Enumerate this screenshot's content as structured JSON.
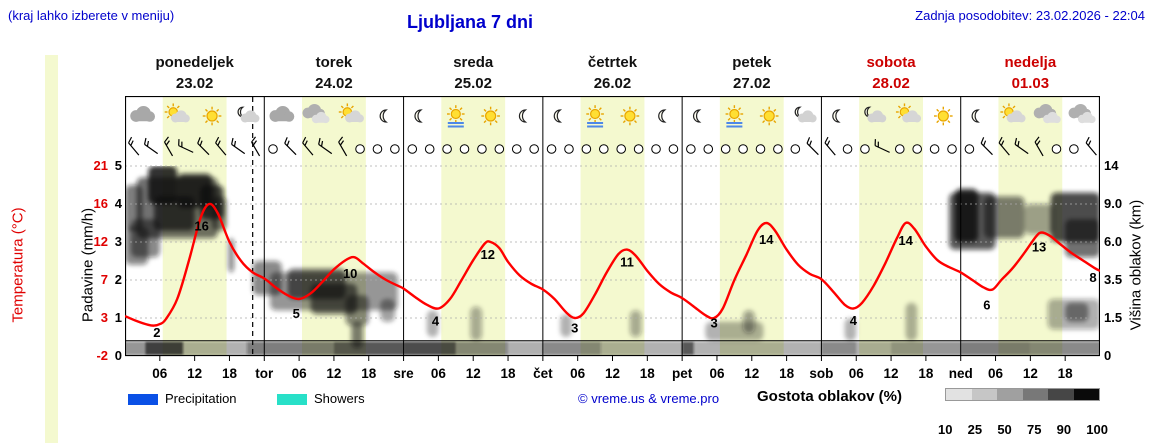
{
  "header": {
    "hint": "(kraj lahko izberete v meniju)",
    "title": "Ljubljana 7 dni",
    "updated": "Zadnja posodobitev: 23.02.2026 - 22:04"
  },
  "days": [
    {
      "name": "ponedeljek",
      "date": "23.02",
      "color": "#111111"
    },
    {
      "name": "torek",
      "date": "24.02",
      "color": "#111111"
    },
    {
      "name": "sreda",
      "date": "25.02",
      "color": "#111111"
    },
    {
      "name": "četrtek",
      "date": "26.02",
      "color": "#111111"
    },
    {
      "name": "petek",
      "date": "27.02",
      "color": "#111111"
    },
    {
      "name": "sobota",
      "date": "28.02",
      "color": "#cc0000"
    },
    {
      "name": "nedelja",
      "date": "01.03",
      "color": "#cc0000"
    }
  ],
  "axes": {
    "temp": {
      "title": "Temperatura (°C)",
      "ticks": [
        "21",
        "16",
        "12",
        "7",
        "3",
        "-2"
      ],
      "color": "#e00000"
    },
    "precip": {
      "title": "Padavine (mm/h)",
      "ticks": [
        "5",
        "4",
        "3",
        "2",
        "1",
        "0"
      ]
    },
    "cloud_height": {
      "title": "Višina oblakov (km)",
      "ticks": [
        "14",
        "9.0",
        "6.0",
        "3.5",
        "1.5",
        "0"
      ]
    },
    "x_ticks": [
      "06",
      "12",
      "18",
      "tor",
      "06",
      "12",
      "18",
      "sre",
      "06",
      "12",
      "18",
      "čet",
      "06",
      "12",
      "18",
      "pet",
      "06",
      "12",
      "18",
      "sob",
      "06",
      "12",
      "18",
      "ned",
      "06",
      "12",
      "18"
    ]
  },
  "legend": {
    "precipitation": {
      "label": "Precipitation",
      "color": "#0a50e6"
    },
    "showers": {
      "label": "Showers",
      "color": "#28e0c8"
    },
    "credit": "© vreme.us & vreme.pro",
    "cloud_density": {
      "label": "Gostota oblakov (%)",
      "ticks": [
        "10",
        "25",
        "50",
        "75",
        "90",
        "100"
      ],
      "shades": [
        "#e2e2e2",
        "#c6c6c6",
        "#a0a0a0",
        "#787878",
        "#464646",
        "#0a0a0a"
      ]
    }
  },
  "colors": {
    "band": "#f4f9cf",
    "curve": "#ff0000",
    "grid": "#aaaaaa",
    "frame": "#000000"
  },
  "chart_data": {
    "type": "line",
    "title": "Ljubljana 7 dni meteogram",
    "x_unit": "hours from Mon 23.02 00:00",
    "x_range": [
      0,
      168
    ],
    "units_range": [
      0,
      5
    ],
    "temp_axis_map": {
      "units": [
        0,
        1,
        2,
        3,
        4,
        5
      ],
      "temps": [
        -2,
        3,
        7,
        12,
        16,
        21
      ]
    },
    "day_band": {
      "start_hour": 6.5,
      "end_hour": 17.5
    },
    "now_hour": 22,
    "temperature": {
      "points": [
        [
          0,
          3.2
        ],
        [
          2,
          2.6
        ],
        [
          4,
          2.1
        ],
        [
          5,
          2
        ],
        [
          6,
          2.2
        ],
        [
          7,
          2.8
        ],
        [
          9,
          5
        ],
        [
          11,
          9.5
        ],
        [
          13,
          14.5
        ],
        [
          14.5,
          16
        ],
        [
          16,
          15
        ],
        [
          18,
          12
        ],
        [
          20,
          9.5
        ],
        [
          22,
          8
        ],
        [
          24,
          7.2
        ],
        [
          26,
          6.2
        ],
        [
          28,
          5.4
        ],
        [
          30,
          5
        ],
        [
          32,
          5.6
        ],
        [
          34,
          6.8
        ],
        [
          36,
          8.4
        ],
        [
          38,
          9.6
        ],
        [
          39.5,
          10
        ],
        [
          41,
          9.2
        ],
        [
          43,
          8
        ],
        [
          45,
          7
        ],
        [
          47,
          6.4
        ],
        [
          48,
          6.1
        ],
        [
          50,
          5.2
        ],
        [
          52,
          4.4
        ],
        [
          54,
          4
        ],
        [
          56,
          5
        ],
        [
          58,
          7
        ],
        [
          60,
          9.6
        ],
        [
          62,
          11.8
        ],
        [
          63,
          12
        ],
        [
          64.5,
          11.2
        ],
        [
          66,
          9.4
        ],
        [
          68,
          7.6
        ],
        [
          70,
          6.6
        ],
        [
          72,
          6
        ],
        [
          74,
          5
        ],
        [
          76,
          3.6
        ],
        [
          77.5,
          3
        ],
        [
          79,
          3.5
        ],
        [
          81,
          5.5
        ],
        [
          83,
          8
        ],
        [
          85,
          10.4
        ],
        [
          86.5,
          11
        ],
        [
          88,
          10.2
        ],
        [
          90,
          8.2
        ],
        [
          92,
          6.6
        ],
        [
          94,
          5.7
        ],
        [
          96,
          5.1
        ],
        [
          98,
          4.2
        ],
        [
          100,
          3.3
        ],
        [
          101.5,
          3
        ],
        [
          103,
          4
        ],
        [
          105,
          7
        ],
        [
          107,
          10.2
        ],
        [
          109,
          13.2
        ],
        [
          110.5,
          14
        ],
        [
          112,
          13.2
        ],
        [
          114,
          11
        ],
        [
          116,
          9
        ],
        [
          118,
          7.8
        ],
        [
          120,
          7.1
        ],
        [
          122,
          5.8
        ],
        [
          124,
          4.4
        ],
        [
          125.5,
          4
        ],
        [
          127,
          4.6
        ],
        [
          129,
          6.4
        ],
        [
          131,
          9.2
        ],
        [
          133,
          12.4
        ],
        [
          134.5,
          14
        ],
        [
          136,
          13.4
        ],
        [
          138,
          11.4
        ],
        [
          140,
          9.6
        ],
        [
          142,
          8.7
        ],
        [
          144,
          8
        ],
        [
          146,
          7
        ],
        [
          148,
          6.2
        ],
        [
          149.5,
          6
        ],
        [
          151,
          7
        ],
        [
          153,
          8.6
        ],
        [
          155,
          10.6
        ],
        [
          157,
          12.6
        ],
        [
          158,
          13
        ],
        [
          159.5,
          12.6
        ],
        [
          161,
          11.8
        ],
        [
          163,
          10.6
        ],
        [
          165,
          9.6
        ],
        [
          167,
          8.6
        ],
        [
          168,
          8.2
        ]
      ],
      "labels": [
        {
          "text": "2",
          "h": 5.5,
          "u": 0.5
        },
        {
          "text": "16",
          "h": 13.2,
          "u": 3.3
        },
        {
          "text": "5",
          "h": 29.5,
          "u": 1.0
        },
        {
          "text": "10",
          "h": 38.8,
          "u": 2.05
        },
        {
          "text": "4",
          "h": 53.5,
          "u": 0.8
        },
        {
          "text": "12",
          "h": 62.5,
          "u": 2.55
        },
        {
          "text": "3",
          "h": 77.5,
          "u": 0.62
        },
        {
          "text": "11",
          "h": 86.5,
          "u": 2.35
        },
        {
          "text": "3",
          "h": 101.5,
          "u": 0.75
        },
        {
          "text": "14",
          "h": 110.5,
          "u": 2.95
        },
        {
          "text": "4",
          "h": 125.5,
          "u": 0.82
        },
        {
          "text": "14",
          "h": 134.5,
          "u": 2.92
        },
        {
          "text": "6",
          "h": 148.5,
          "u": 1.22
        },
        {
          "text": "13",
          "h": 157.5,
          "u": 2.75
        },
        {
          "text": "8",
          "h": 166.8,
          "u": 1.95
        }
      ]
    },
    "clouds": [
      {
        "h0": 0,
        "h1": 4,
        "u0": 2.4,
        "u1": 3.4,
        "s": 0.5
      },
      {
        "h0": 0,
        "h1": 3,
        "u0": 3.3,
        "u1": 4.5,
        "s": 0.55
      },
      {
        "h0": 2,
        "h1": 16,
        "u0": 3.1,
        "u1": 4.7,
        "s": 0.6
      },
      {
        "h0": 4,
        "h1": 9,
        "u0": 4.0,
        "u1": 5.0,
        "s": 0.85
      },
      {
        "h0": 9,
        "h1": 15,
        "u0": 3.9,
        "u1": 4.8,
        "s": 0.8
      },
      {
        "h0": 5,
        "h1": 12,
        "u0": 3.3,
        "u1": 4.2,
        "s": 0.7
      },
      {
        "h0": 13,
        "h1": 17,
        "u0": 3.6,
        "u1": 4.5,
        "s": 0.75
      },
      {
        "h0": 1,
        "h1": 6,
        "u0": 2.6,
        "u1": 3.6,
        "s": 0.5
      },
      {
        "h0": 15,
        "h1": 17.5,
        "u0": 3.3,
        "u1": 4.2,
        "s": 0.55
      },
      {
        "h0": 17.8,
        "h1": 18.8,
        "u0": 2.2,
        "u1": 3.1,
        "s": 0.5
      },
      {
        "h0": 22,
        "h1": 27,
        "u0": 1.6,
        "u1": 2.5,
        "s": 0.5
      },
      {
        "h0": 25,
        "h1": 47,
        "u0": 1.2,
        "u1": 2.2,
        "s": 0.45
      },
      {
        "h0": 28,
        "h1": 38,
        "u0": 1.5,
        "u1": 2.3,
        "s": 0.6
      },
      {
        "h0": 32,
        "h1": 40,
        "u0": 1.1,
        "u1": 1.9,
        "s": 0.6
      },
      {
        "h0": 38,
        "h1": 42,
        "u0": 0.8,
        "u1": 1.6,
        "s": 0.5
      },
      {
        "h0": 44,
        "h1": 46.5,
        "u0": 0.9,
        "u1": 1.5,
        "s": 0.4
      },
      {
        "h0": 39,
        "h1": 41,
        "u0": 0.2,
        "u1": 0.9,
        "s": 0.55
      },
      {
        "h0": 52,
        "h1": 54,
        "u0": 0.5,
        "u1": 1.2,
        "s": 0.3
      },
      {
        "h0": 59.5,
        "h1": 61.5,
        "u0": 0.4,
        "u1": 1.3,
        "s": 0.35
      },
      {
        "h0": 75,
        "h1": 77,
        "u0": 0.5,
        "u1": 1.1,
        "s": 0.3
      },
      {
        "h0": 87,
        "h1": 89,
        "u0": 0.5,
        "u1": 1.2,
        "s": 0.35
      },
      {
        "h0": 100,
        "h1": 110,
        "u0": 0.4,
        "u1": 0.9,
        "s": 0.3
      },
      {
        "h0": 106.5,
        "h1": 108.5,
        "u0": 0.6,
        "u1": 1.2,
        "s": 0.4
      },
      {
        "h0": 124,
        "h1": 126,
        "u0": 0.4,
        "u1": 1.0,
        "s": 0.3
      },
      {
        "h0": 134.5,
        "h1": 136.5,
        "u0": 0.4,
        "u1": 1.4,
        "s": 0.3
      },
      {
        "h0": 142,
        "h1": 150,
        "u0": 2.8,
        "u1": 4.3,
        "s": 0.7
      },
      {
        "h0": 143,
        "h1": 147,
        "u0": 3.0,
        "u1": 4.4,
        "s": 0.85
      },
      {
        "h0": 148,
        "h1": 155,
        "u0": 3.1,
        "u1": 4.2,
        "s": 0.55
      },
      {
        "h0": 155,
        "h1": 160,
        "u0": 3.2,
        "u1": 4.0,
        "s": 0.4
      },
      {
        "h0": 159.5,
        "h1": 168,
        "u0": 3.0,
        "u1": 4.3,
        "s": 0.75
      },
      {
        "h0": 162,
        "h1": 168,
        "u0": 2.6,
        "u1": 3.6,
        "s": 0.6
      },
      {
        "h0": 159,
        "h1": 168,
        "u0": 0.7,
        "u1": 1.5,
        "s": 0.35
      },
      {
        "h0": 162,
        "h1": 166,
        "u0": 0.9,
        "u1": 1.4,
        "s": 0.45
      }
    ],
    "low_cloud_strip": [
      {
        "h0": 0,
        "h1": 3.5,
        "s": 0.45
      },
      {
        "h0": 3.5,
        "h1": 10,
        "s": 0.8
      },
      {
        "h0": 10,
        "h1": 21,
        "s": 0.3
      },
      {
        "h0": 21,
        "h1": 36,
        "s": 0.55
      },
      {
        "h0": 36,
        "h1": 48,
        "s": 0.7
      },
      {
        "h0": 48,
        "h1": 57,
        "s": 0.75
      },
      {
        "h0": 57,
        "h1": 66,
        "s": 0.5
      },
      {
        "h0": 66,
        "h1": 72,
        "s": 0.35
      },
      {
        "h0": 72,
        "h1": 82,
        "s": 0.5
      },
      {
        "h0": 82,
        "h1": 96,
        "s": 0.3
      },
      {
        "h0": 96,
        "h1": 98,
        "s": 0.7
      },
      {
        "h0": 98,
        "h1": 120,
        "s": 0.3
      },
      {
        "h0": 120,
        "h1": 126,
        "s": 0.5
      },
      {
        "h0": 126,
        "h1": 132,
        "s": 0.35
      },
      {
        "h0": 132,
        "h1": 144,
        "s": 0.45
      },
      {
        "h0": 144,
        "h1": 156,
        "s": 0.55
      },
      {
        "h0": 156,
        "h1": 168,
        "s": 0.5
      }
    ],
    "weather_icons": [
      "cloud",
      "sun-cloud",
      "sun",
      "moon-cloud",
      "cloud",
      "clouds",
      "sun-cloud",
      "moon",
      "moon",
      "sun-haze",
      "sun",
      "moon",
      "moon",
      "sun-haze",
      "sun",
      "moon",
      "moon",
      "sun-haze",
      "sun",
      "moon-cloud",
      "moon",
      "moon-cloud",
      "sun-cloud",
      "sun",
      "moon",
      "sun-cloud",
      "clouds",
      "clouds"
    ],
    "wind_pattern": "bbbbbbbbobbbboooooooooooooooooooooooooobboobooooobbbboobboo"
  }
}
